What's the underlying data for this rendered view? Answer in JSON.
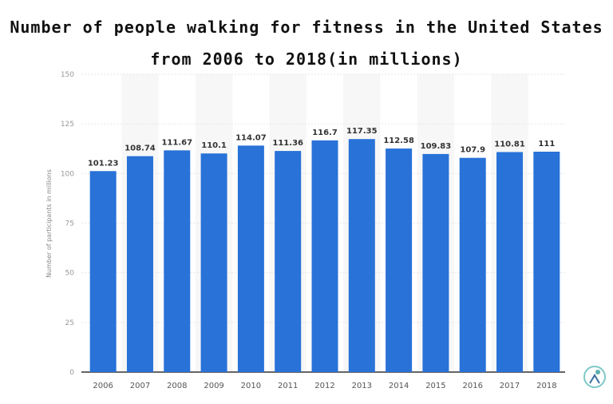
{
  "chart_data": {
    "type": "bar",
    "title": "Number of people walking for fitness in the United States",
    "subtitle": "from 2006 to 2018(in millions)",
    "xlabel": "",
    "ylabel": "Number of participants in millions",
    "categories": [
      "2006",
      "2007",
      "2008",
      "2009",
      "2010",
      "2011",
      "2012",
      "2013",
      "2014",
      "2015",
      "2016",
      "2017",
      "2018"
    ],
    "values": [
      101.23,
      108.74,
      111.67,
      110.1,
      114.07,
      111.36,
      116.7,
      117.35,
      112.58,
      109.83,
      107.9,
      110.81,
      111
    ],
    "value_labels": [
      "101.23",
      "108.74",
      "111.67",
      "110.1",
      "114.07",
      "111.36",
      "116.7",
      "117.35",
      "112.58",
      "109.83",
      "107.9",
      "110.81",
      "111"
    ],
    "ylim": [
      0,
      150
    ],
    "yticks": [
      0,
      25,
      50,
      75,
      100,
      125,
      150
    ],
    "grid": true,
    "bar_color": "#2872d8",
    "band_color": "#f7f7f7"
  }
}
